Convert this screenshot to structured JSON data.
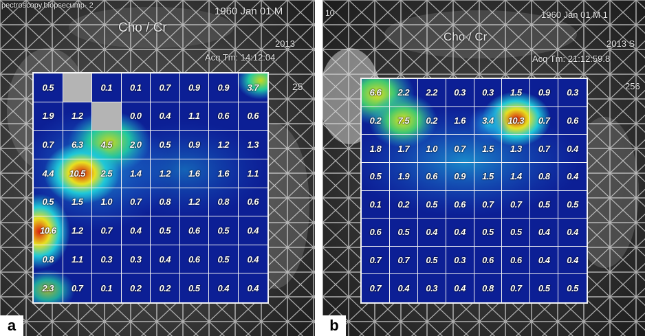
{
  "panels": [
    {
      "id": "a",
      "label": "a",
      "header": {
        "left_text": "pectroscopy.biopsecump· 2",
        "metabolite": "Cho / Cr",
        "date": "1960 Jan 01  M",
        "year": "2013",
        "acq_time": "Acq Tm: 14:12:04.",
        "side_number": "25"
      },
      "grid": [
        [
          "0.5",
          "",
          "0.1",
          "0.1",
          "0.7",
          "0.9",
          "0.9",
          "3.7"
        ],
        [
          "1.9",
          "1.2",
          "",
          "0.0",
          "0.4",
          "1.1",
          "0.6",
          "0.6"
        ],
        [
          "0.7",
          "6.3",
          "4.5",
          "2.0",
          "0.5",
          "0.9",
          "1.2",
          "1.3"
        ],
        [
          "4.4",
          "10.5",
          "2.5",
          "1.4",
          "1.2",
          "1.6",
          "1.6",
          "1.1"
        ],
        [
          "0.5",
          "1.5",
          "1.0",
          "0.7",
          "0.8",
          "1.2",
          "0.8",
          "0.6"
        ],
        [
          "10.6",
          "1.2",
          "0.7",
          "0.4",
          "0.5",
          "0.6",
          "0.5",
          "0.4"
        ],
        [
          "0.8",
          "1.1",
          "0.3",
          "0.3",
          "0.4",
          "0.6",
          "0.5",
          "0.4"
        ],
        [
          "2.3",
          "0.7",
          "0.1",
          "0.2",
          "0.2",
          "0.5",
          "0.4",
          "0.4"
        ]
      ]
    },
    {
      "id": "b",
      "label": "b",
      "header": {
        "left_text": "10",
        "metabolite": "Cho / Cr",
        "date": "1960 Jan 01  M 1",
        "year": "2013 S",
        "acq_time": "Acq Tm: 21:12:59.8",
        "side_number": "256"
      },
      "grid": [
        [
          "6.6",
          "2.2",
          "2.2",
          "0.3",
          "0.3",
          "1.5",
          "0.9",
          "0.3"
        ],
        [
          "0.2",
          "7.5",
          "0.2",
          "1.6",
          "3.4",
          "10.3",
          "0.7",
          "0.6"
        ],
        [
          "1.8",
          "1.7",
          "1.0",
          "0.7",
          "1.5",
          "1.3",
          "0.7",
          "0.4"
        ],
        [
          "0.5",
          "1.9",
          "0.6",
          "0.9",
          "1.5",
          "1.4",
          "0.8",
          "0.4"
        ],
        [
          "0.1",
          "0.2",
          "0.5",
          "0.6",
          "0.7",
          "0.7",
          "0.5",
          "0.5"
        ],
        [
          "0.6",
          "0.5",
          "0.4",
          "0.4",
          "0.5",
          "0.5",
          "0.4",
          "0.4"
        ],
        [
          "0.7",
          "0.7",
          "0.5",
          "0.3",
          "0.6",
          "0.6",
          "0.4",
          "0.4"
        ],
        [
          "0.7",
          "0.4",
          "0.3",
          "0.4",
          "0.8",
          "0.7",
          "0.5",
          "0.5"
        ]
      ]
    }
  ],
  "colors": {
    "grid_line": "#f2f2f2",
    "map_background": "#0a1a8a",
    "label_background": "#ffffff",
    "low": "#0a1a8a",
    "mid": "#1fc8d8",
    "high": "#e8e020",
    "peak": "#d82010"
  }
}
